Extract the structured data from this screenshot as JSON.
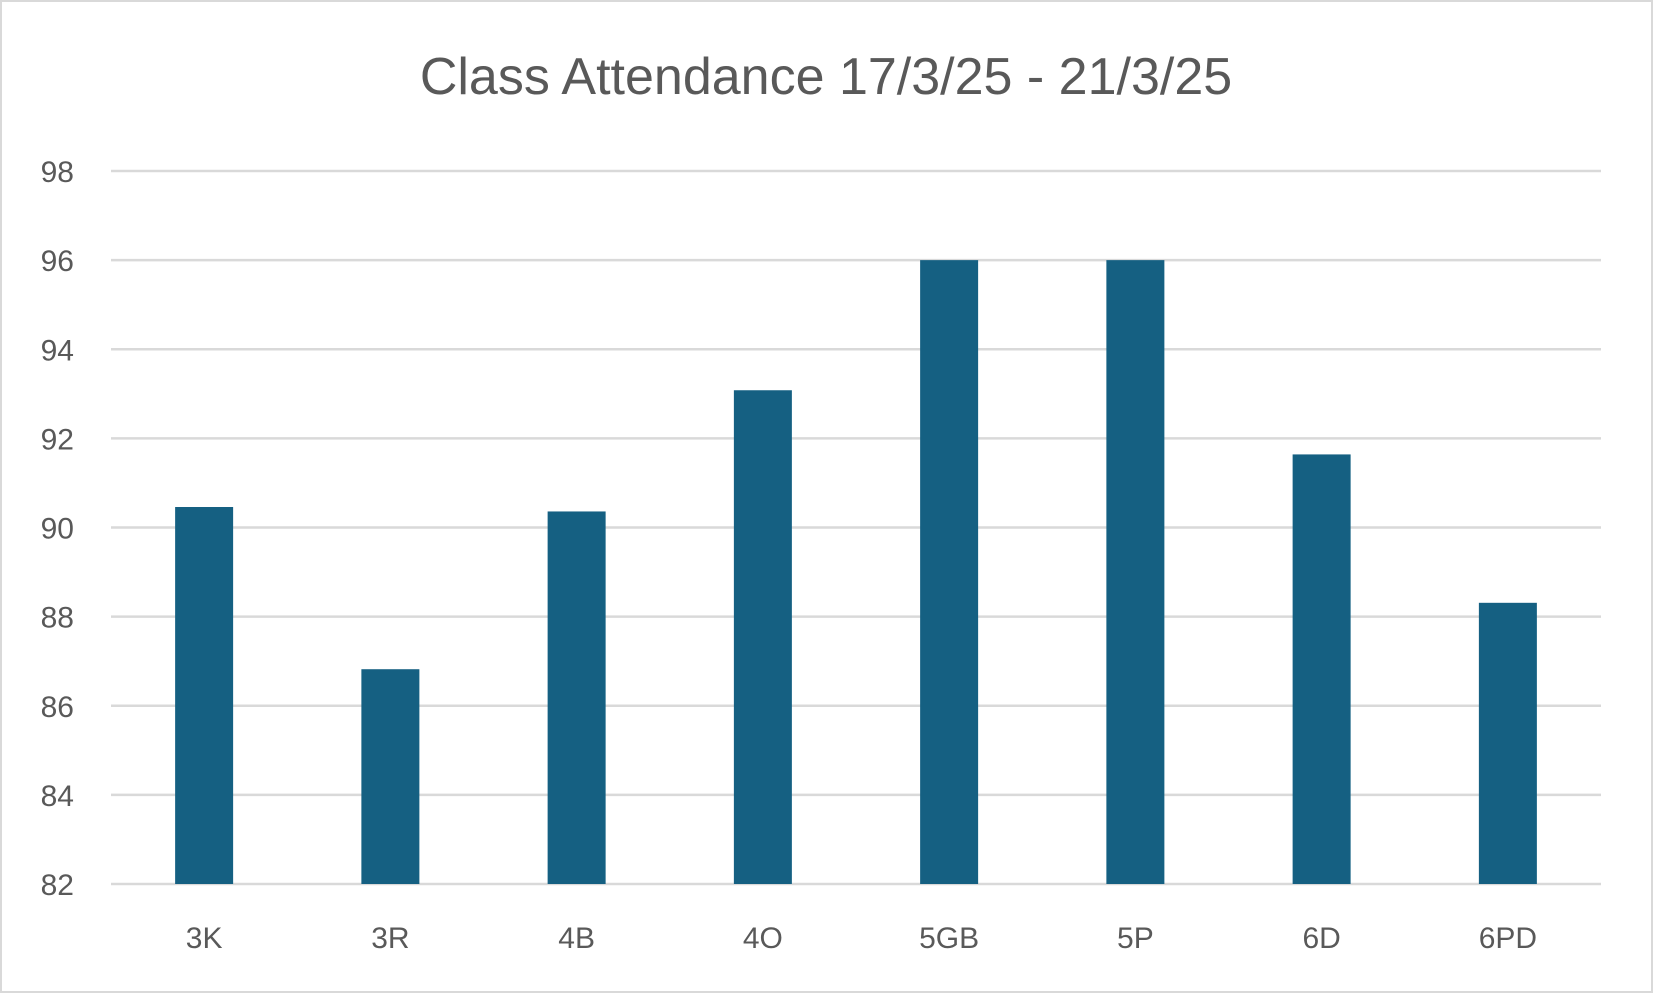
{
  "chart_data": {
    "type": "bar",
    "title": "Class Attendance 17/3/25 - 21/3/25",
    "xlabel": "",
    "ylabel": "",
    "categories": [
      "3K",
      "3R",
      "4B",
      "4O",
      "5GB",
      "5P",
      "6D",
      "6PD"
    ],
    "values": [
      90.46,
      86.82,
      90.36,
      93.08,
      96.0,
      96.0,
      91.64,
      88.31
    ],
    "ylim": [
      82,
      98
    ],
    "yticks": [
      "82",
      "84",
      "86",
      "88",
      "90",
      "92",
      "94",
      "96",
      "98"
    ],
    "grid": true,
    "legend": "none",
    "bar_color": "#156082",
    "grid_color": "#d9d9d9"
  }
}
